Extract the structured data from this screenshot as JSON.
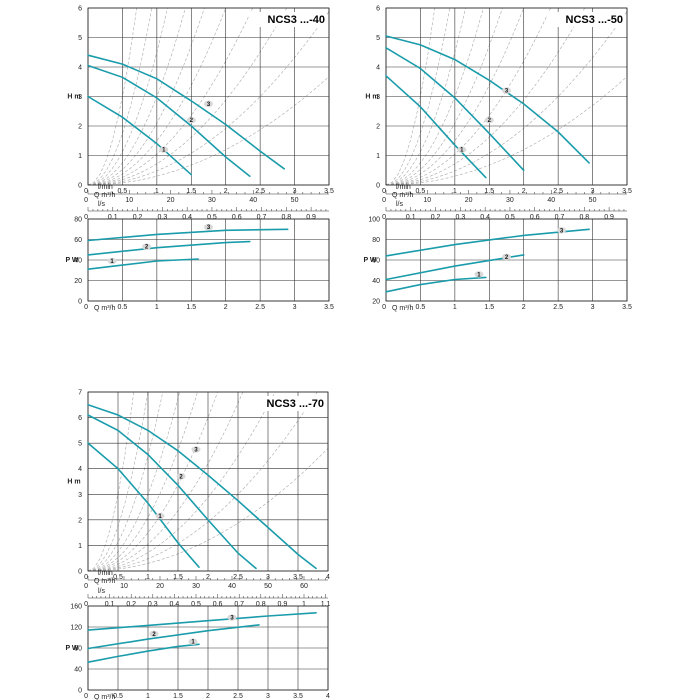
{
  "chart_data": [
    {
      "type": "line",
      "title": "NCS3 ...-40",
      "head": {
        "ylabel": "H m",
        "xlabel": "Q m³/h",
        "xlim": [
          0,
          3.5
        ],
        "ylim": [
          0,
          6
        ],
        "xticks": [
          "0",
          "0.5",
          "1",
          "1.5",
          "2",
          "2.5",
          "3",
          "3.5"
        ],
        "yticks": [
          "0",
          "1",
          "2",
          "3",
          "4",
          "5",
          "6"
        ],
        "lmin_label": "l/min",
        "lmin_ticks": [
          {
            "label": "0",
            "v": 0
          },
          {
            "label": "10",
            "v": 10
          },
          {
            "label": "20",
            "v": 20
          },
          {
            "label": "30",
            "v": 30
          },
          {
            "label": "40",
            "v": 40
          },
          {
            "label": "50",
            "v": 50
          }
        ],
        "ls_label": "l/s",
        "ls_ticks": [
          {
            "label": "0",
            "v": 0
          },
          {
            "label": "0.1",
            "v": 0.1
          },
          {
            "label": "0.2",
            "v": 0.2
          },
          {
            "label": "0.3",
            "v": 0.3
          },
          {
            "label": "0.4",
            "v": 0.4
          },
          {
            "label": "0.5",
            "v": 0.5
          },
          {
            "label": "0.6",
            "v": 0.6
          },
          {
            "label": "0.7",
            "v": 0.7
          },
          {
            "label": "0.8",
            "v": 0.8
          },
          {
            "label": "0.9",
            "v": 0.9
          }
        ],
        "series": [
          {
            "name": "1",
            "label_at": [
              1.1,
              1.2
            ],
            "points": [
              [
                0,
                3.0
              ],
              [
                0.5,
                2.3
              ],
              [
                1.0,
                1.4
              ],
              [
                1.5,
                0.35
              ]
            ]
          },
          {
            "name": "2",
            "label_at": [
              1.5,
              2.2
            ],
            "points": [
              [
                0,
                4.05
              ],
              [
                0.5,
                3.65
              ],
              [
                1.0,
                2.95
              ],
              [
                1.5,
                2.0
              ],
              [
                2.0,
                0.95
              ],
              [
                2.35,
                0.3
              ]
            ]
          },
          {
            "name": "3",
            "label_at": [
              1.75,
              2.75
            ],
            "points": [
              [
                0,
                4.4
              ],
              [
                0.5,
                4.1
              ],
              [
                1.0,
                3.6
              ],
              [
                1.5,
                2.85
              ],
              [
                2.0,
                2.05
              ],
              [
                2.5,
                1.15
              ],
              [
                2.85,
                0.55
              ]
            ]
          }
        ]
      },
      "power": {
        "ylabel": "P W",
        "xlabel": "Q m³/h",
        "xlim": [
          0,
          3.5
        ],
        "ylim": [
          0,
          80
        ],
        "xticks": [
          "0",
          "0.5",
          "1",
          "1.5",
          "2",
          "2.5",
          "3",
          "3.5"
        ],
        "yticks": [
          "0",
          "20",
          "40",
          "60",
          "80"
        ],
        "series": [
          {
            "name": "1",
            "label_at": [
              0.35,
              39
            ],
            "points": [
              [
                0,
                31
              ],
              [
                0.5,
                35
              ],
              [
                1.0,
                39
              ],
              [
                1.6,
                41
              ]
            ]
          },
          {
            "name": "2",
            "label_at": [
              0.85,
              53
            ],
            "points": [
              [
                0,
                45
              ],
              [
                1.0,
                52
              ],
              [
                2.0,
                57
              ],
              [
                2.35,
                58
              ]
            ]
          },
          {
            "name": "3",
            "label_at": [
              1.75,
              72
            ],
            "points": [
              [
                0,
                59
              ],
              [
                1.0,
                65
              ],
              [
                2.0,
                69
              ],
              [
                2.9,
                70
              ]
            ]
          }
        ]
      }
    },
    {
      "type": "line",
      "title": "NCS3 ...-50",
      "head": {
        "ylabel": "H m",
        "xlabel": "Q m³/h",
        "xlim": [
          0,
          3.5
        ],
        "ylim": [
          0,
          6
        ],
        "xticks": [
          "0",
          "0.5",
          "1",
          "1.5",
          "2",
          "2.5",
          "3",
          "3.5"
        ],
        "yticks": [
          "0",
          "1",
          "2",
          "3",
          "4",
          "5",
          "6"
        ],
        "lmin_label": "l/min",
        "lmin_ticks": [
          {
            "label": "0",
            "v": 0
          },
          {
            "label": "10",
            "v": 10
          },
          {
            "label": "20",
            "v": 20
          },
          {
            "label": "30",
            "v": 30
          },
          {
            "label": "40",
            "v": 40
          },
          {
            "label": "50",
            "v": 50
          }
        ],
        "ls_label": "l/s",
        "ls_ticks": [
          {
            "label": "0",
            "v": 0
          },
          {
            "label": "0.1",
            "v": 0.1
          },
          {
            "label": "0.2",
            "v": 0.2
          },
          {
            "label": "0.3",
            "v": 0.3
          },
          {
            "label": "0.4",
            "v": 0.4
          },
          {
            "label": "0.5",
            "v": 0.5
          },
          {
            "label": "0.6",
            "v": 0.6
          },
          {
            "label": "0.7",
            "v": 0.7
          },
          {
            "label": "0.8",
            "v": 0.8
          },
          {
            "label": "0.9",
            "v": 0.9
          }
        ],
        "series": [
          {
            "name": "1",
            "label_at": [
              1.1,
              1.2
            ],
            "points": [
              [
                0,
                3.7
              ],
              [
                0.5,
                2.65
              ],
              [
                1.0,
                1.35
              ],
              [
                1.45,
                0.25
              ]
            ]
          },
          {
            "name": "2",
            "label_at": [
              1.5,
              2.2
            ],
            "points": [
              [
                0,
                4.65
              ],
              [
                0.5,
                3.95
              ],
              [
                1.0,
                2.95
              ],
              [
                1.5,
                1.75
              ],
              [
                2.0,
                0.5
              ]
            ]
          },
          {
            "name": "3",
            "label_at": [
              1.75,
              3.2
            ],
            "points": [
              [
                0,
                5.05
              ],
              [
                0.5,
                4.75
              ],
              [
                1.0,
                4.25
              ],
              [
                1.5,
                3.55
              ],
              [
                2.0,
                2.75
              ],
              [
                2.5,
                1.8
              ],
              [
                2.95,
                0.75
              ]
            ]
          }
        ]
      },
      "power": {
        "ylabel": "P W",
        "xlabel": "Q m³/h",
        "xlim": [
          0,
          3.5
        ],
        "ylim": [
          20,
          100
        ],
        "xticks": [
          "0",
          "0.5",
          "1",
          "1.5",
          "2",
          "2.5",
          "3",
          "3.5"
        ],
        "yticks": [
          "20",
          "40",
          "60",
          "80",
          "100"
        ],
        "series": [
          {
            "name": "1",
            "label_at": [
              1.35,
              46
            ],
            "points": [
              [
                0,
                29
              ],
              [
                0.5,
                36
              ],
              [
                1.0,
                41
              ],
              [
                1.45,
                43
              ]
            ]
          },
          {
            "name": "2",
            "label_at": [
              1.75,
              63
            ],
            "points": [
              [
                0,
                41
              ],
              [
                1.0,
                54
              ],
              [
                2.0,
                65
              ]
            ]
          },
          {
            "name": "3",
            "label_at": [
              2.55,
              89
            ],
            "points": [
              [
                0,
                64
              ],
              [
                1.0,
                75
              ],
              [
                2.0,
                84
              ],
              [
                2.95,
                90
              ]
            ]
          }
        ]
      }
    },
    {
      "type": "line",
      "title": "NCS3 ...-70",
      "head": {
        "ylabel": "H m",
        "xlabel": "Q m³/h",
        "xlim": [
          0,
          4
        ],
        "ylim": [
          0,
          7
        ],
        "xticks": [
          "0",
          "0.5",
          "1",
          "1.5",
          "2",
          "2.5",
          "3",
          "3.5",
          "4"
        ],
        "yticks": [
          "0",
          "1",
          "2",
          "3",
          "4",
          "5",
          "6",
          "7"
        ],
        "lmin_label": "l/min",
        "lmin_ticks": [
          {
            "label": "0",
            "v": 0
          },
          {
            "label": "10",
            "v": 10
          },
          {
            "label": "20",
            "v": 20
          },
          {
            "label": "30",
            "v": 30
          },
          {
            "label": "40",
            "v": 40
          },
          {
            "label": "50",
            "v": 50
          },
          {
            "label": "60",
            "v": 60
          }
        ],
        "ls_label": "l/s",
        "ls_ticks": [
          {
            "label": "0",
            "v": 0
          },
          {
            "label": "0.1",
            "v": 0.1
          },
          {
            "label": "0.2",
            "v": 0.2
          },
          {
            "label": "0.3",
            "v": 0.3
          },
          {
            "label": "0.4",
            "v": 0.4
          },
          {
            "label": "0.5",
            "v": 0.5
          },
          {
            "label": "0.6",
            "v": 0.6
          },
          {
            "label": "0.7",
            "v": 0.7
          },
          {
            "label": "0.8",
            "v": 0.8
          },
          {
            "label": "0.9",
            "v": 0.9
          },
          {
            "label": "1",
            "v": 1.0
          },
          {
            "label": "1.1",
            "v": 1.1
          }
        ],
        "series": [
          {
            "name": "1",
            "label_at": [
              1.2,
              2.15
            ],
            "points": [
              [
                0,
                5.0
              ],
              [
                0.5,
                4.0
              ],
              [
                1.0,
                2.65
              ],
              [
                1.5,
                1.1
              ],
              [
                1.85,
                0.15
              ]
            ]
          },
          {
            "name": "2",
            "label_at": [
              1.55,
              3.7
            ],
            "points": [
              [
                0,
                6.1
              ],
              [
                0.5,
                5.5
              ],
              [
                1.0,
                4.55
              ],
              [
                1.5,
                3.35
              ],
              [
                2.0,
                2.0
              ],
              [
                2.5,
                0.7
              ],
              [
                2.8,
                0.1
              ]
            ]
          },
          {
            "name": "3",
            "label_at": [
              1.8,
              4.75
            ],
            "points": [
              [
                0,
                6.5
              ],
              [
                0.5,
                6.1
              ],
              [
                1.0,
                5.5
              ],
              [
                1.5,
                4.7
              ],
              [
                2.0,
                3.75
              ],
              [
                2.5,
                2.75
              ],
              [
                3.0,
                1.7
              ],
              [
                3.5,
                0.65
              ],
              [
                3.8,
                0.1
              ]
            ]
          }
        ]
      },
      "power": {
        "ylabel": "P W",
        "xlabel": "Q m³/h",
        "xlim": [
          0,
          4
        ],
        "ylim": [
          0,
          160
        ],
        "xticks": [
          "0",
          "0.5",
          "1",
          "1.5",
          "2",
          "2.5",
          "3",
          "3.5",
          "4"
        ],
        "yticks": [
          "0",
          "40",
          "80",
          "120",
          "160"
        ],
        "series": [
          {
            "name": "1",
            "label_at": [
              1.75,
              92
            ],
            "points": [
              [
                0,
                53
              ],
              [
                0.5,
                64
              ],
              [
                1.0,
                74
              ],
              [
                1.5,
                83
              ],
              [
                1.85,
                87
              ]
            ]
          },
          {
            "name": "2",
            "label_at": [
              1.1,
              107
            ],
            "points": [
              [
                0,
                79
              ],
              [
                1.0,
                97
              ],
              [
                2.0,
                113
              ],
              [
                2.85,
                124
              ]
            ]
          },
          {
            "name": "3",
            "label_at": [
              2.4,
              138
            ],
            "points": [
              [
                0,
                114
              ],
              [
                1.0,
                123
              ],
              [
                2.0,
                132
              ],
              [
                3.0,
                141
              ],
              [
                3.8,
                147
              ]
            ]
          }
        ]
      }
    }
  ]
}
